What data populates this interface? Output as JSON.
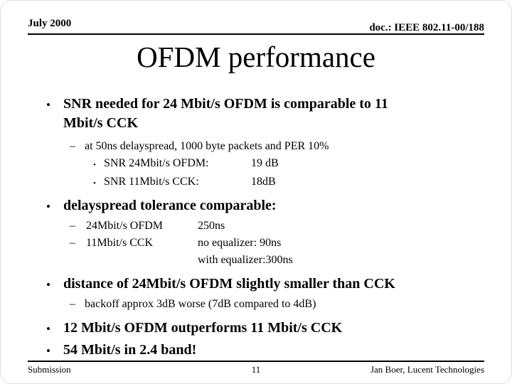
{
  "header": {
    "date": "July 2000",
    "doc": "doc.: IEEE 802.11-00/188"
  },
  "title": "OFDM performance",
  "glyphs": {
    "bullet_l1": "•",
    "dash_l2": "–",
    "bullet_l3": "•"
  },
  "content": {
    "bullet1": "SNR needed for 24 Mbit/s OFDM is comparable to 11 Mbit/s CCK",
    "sub1": "at 50ns delayspread, 1000 byte packets and PER 10%",
    "snr_rows": [
      {
        "label": "SNR 24Mbit/s OFDM:",
        "value": "19 dB"
      },
      {
        "label": "SNR 11Mbit/s CCK:",
        "value": "18dB"
      }
    ],
    "bullet2": "delayspread tolerance comparable:",
    "delay_rows": [
      {
        "dash": "–",
        "label": "24Mbit/s OFDM",
        "value": "250ns"
      },
      {
        "dash": "–",
        "label": "11Mbit/s CCK",
        "value": "no equalizer: 90ns"
      },
      {
        "dash": "",
        "label": "",
        "value": "with equalizer:300ns"
      }
    ],
    "bullet3": "distance of 24Mbit/s OFDM slightly smaller than CCK",
    "sub3": "backoff approx 3dB worse (7dB compared to 4dB)",
    "bullet4": "12 Mbit/s OFDM outperforms 11 Mbit/s CCK",
    "bullet5": "54 Mbit/s in 2.4 band!"
  },
  "footer": {
    "left": "Submission",
    "page": "11",
    "right": "Jan Boer, Lucent Technologies"
  }
}
